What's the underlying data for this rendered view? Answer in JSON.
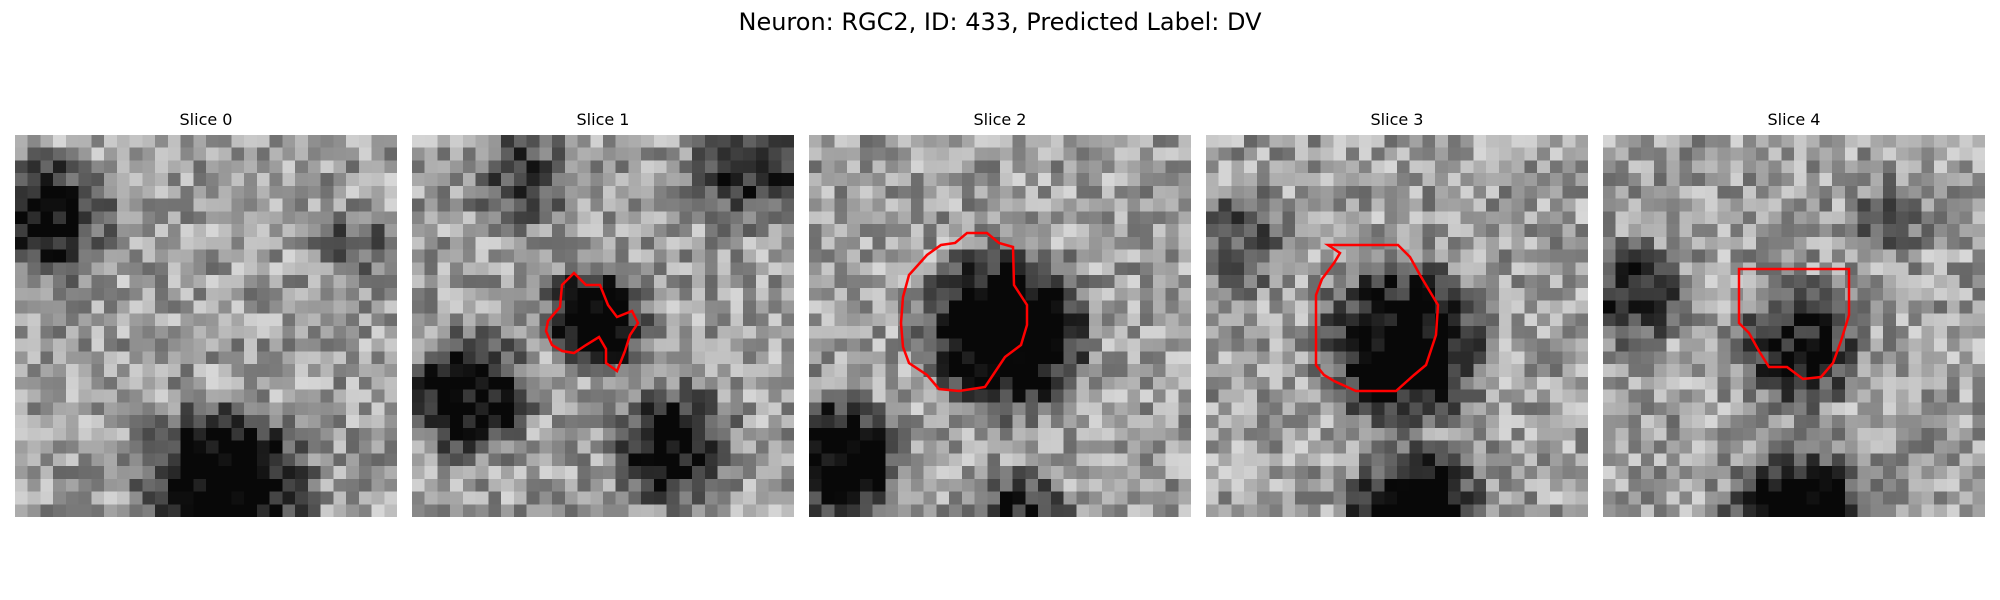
{
  "figure": {
    "title": "Neuron: RGC2, ID: 433, Predicted Label: DV"
  },
  "panels": [
    {
      "title": "Slice 0",
      "has_contour": false
    },
    {
      "title": "Slice 1",
      "has_contour": true
    },
    {
      "title": "Slice 2",
      "has_contour": true
    },
    {
      "title": "Slice 3",
      "has_contour": true
    },
    {
      "title": "Slice 4",
      "has_contour": true
    }
  ],
  "colors": {
    "contour": "#ff0000",
    "background": "#ffffff"
  },
  "image_style": "grayscale microscopy slice"
}
